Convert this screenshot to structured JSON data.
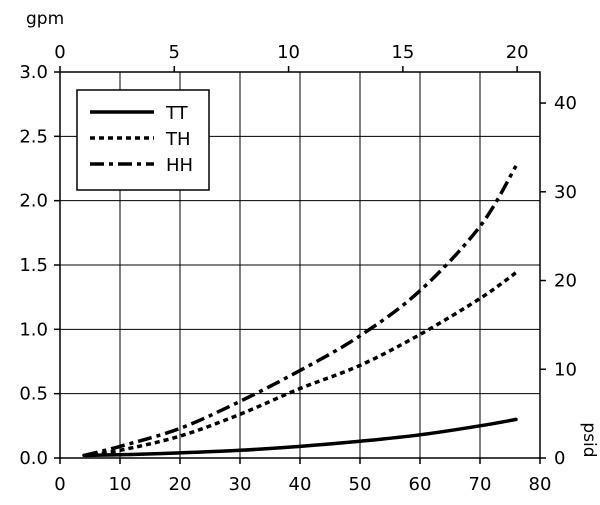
{
  "chart_data": {
    "type": "line",
    "title": "",
    "grid": true,
    "legend_position": "top-left",
    "x_bottom": {
      "label": "",
      "range": [
        0,
        80
      ],
      "ticks": [
        "0",
        "10",
        "20",
        "30",
        "40",
        "50",
        "60",
        "70",
        "80"
      ]
    },
    "x_top": {
      "label": "gpm",
      "range": [
        0,
        21
      ],
      "ticks": [
        "0",
        "5",
        "10",
        "15",
        "20"
      ]
    },
    "y_left": {
      "label": "",
      "range": [
        0,
        3.0
      ],
      "ticks": [
        "0.0",
        "0.5",
        "1.0",
        "1.5",
        "2.0",
        "2.5",
        "3.0"
      ]
    },
    "y_right": {
      "label": "psid",
      "range": [
        0,
        43.5
      ],
      "ticks": [
        "0",
        "10",
        "20",
        "30",
        "40"
      ]
    },
    "series": [
      {
        "name": "TT",
        "style": "solid",
        "points": [
          [
            4,
            0.02
          ],
          [
            10,
            0.025
          ],
          [
            20,
            0.04
          ],
          [
            30,
            0.06
          ],
          [
            40,
            0.09
          ],
          [
            50,
            0.13
          ],
          [
            60,
            0.18
          ],
          [
            70,
            0.25
          ],
          [
            76,
            0.3
          ]
        ]
      },
      {
        "name": "TH",
        "style": "dotted",
        "points": [
          [
            4,
            0.02
          ],
          [
            10,
            0.06
          ],
          [
            20,
            0.17
          ],
          [
            30,
            0.34
          ],
          [
            40,
            0.54
          ],
          [
            50,
            0.72
          ],
          [
            60,
            0.96
          ],
          [
            70,
            1.24
          ],
          [
            76,
            1.44
          ]
        ]
      },
      {
        "name": "HH",
        "style": "dashdot",
        "points": [
          [
            4,
            0.02
          ],
          [
            10,
            0.09
          ],
          [
            20,
            0.23
          ],
          [
            30,
            0.44
          ],
          [
            40,
            0.68
          ],
          [
            50,
            0.95
          ],
          [
            60,
            1.3
          ],
          [
            70,
            1.8
          ],
          [
            76,
            2.27
          ]
        ]
      }
    ]
  }
}
